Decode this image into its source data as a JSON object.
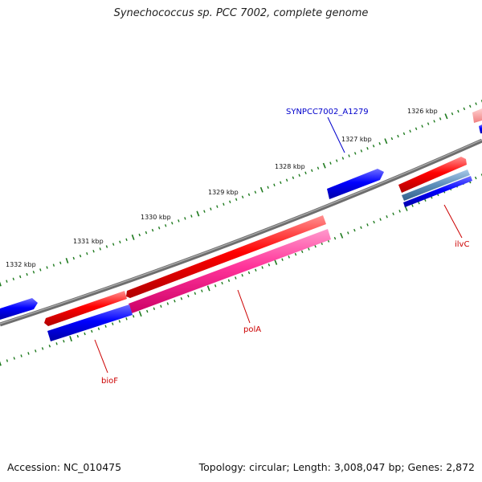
{
  "title": "Synechococcus sp. PCC 7002, complete genome",
  "footer": {
    "accession": "Accession: NC_010475",
    "summary": "Topology: circular; Length: 3,008,047 bp; Genes: 2,872"
  },
  "ruler": {
    "labels": [
      "1326 kbp",
      "1327 kbp",
      "1328 kbp",
      "1329 kbp",
      "1330 kbp",
      "1331 kbp",
      "1332 kbp"
    ],
    "tick_color": "#1e7a1e"
  },
  "colors": {
    "backbone": "#808080",
    "gene_forward": "#ff0000",
    "gene_reverse": "#0000ff",
    "cds": "#ff3399",
    "cds_alt": "#5b8db8",
    "label_red": "#cc0000",
    "label_blue": "#0000cc"
  },
  "gene_labels": [
    {
      "name": "SYNPCC7002_A1279",
      "color": "blue"
    },
    {
      "name": "ilvC",
      "color": "red"
    },
    {
      "name": "polA",
      "color": "red"
    },
    {
      "name": "bioF",
      "color": "red"
    }
  ]
}
